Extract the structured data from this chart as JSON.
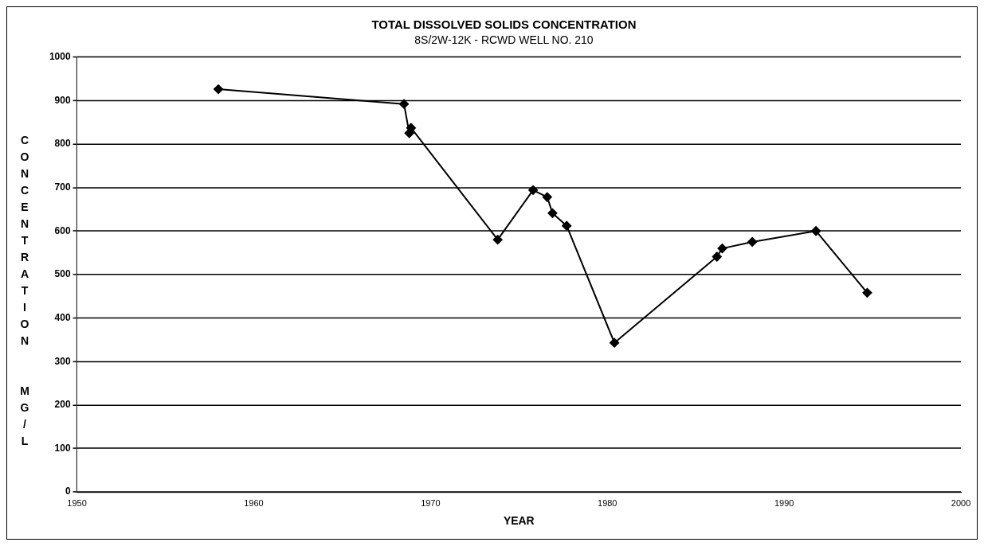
{
  "chart_data": {
    "type": "line",
    "title": "TOTAL DISSOLVED SOLIDS CONCENTRATION",
    "subtitle": "8S/2W-12K - RCWD WELL NO. 210",
    "xlabel": "YEAR",
    "ylabel": "CONCENTRATION  MG/L",
    "x": [
      1958.0,
      1968.5,
      1968.8,
      1968.9,
      1973.8,
      1975.8,
      1976.6,
      1976.9,
      1977.7,
      1980.4,
      1986.2,
      1986.5,
      1988.2,
      1991.8,
      1994.7
    ],
    "series": [
      {
        "color": "#000000",
        "values": [
          926,
          892,
          825,
          837,
          580,
          694,
          678,
          641,
          612,
          343,
          541,
          560,
          575,
          600,
          458
        ]
      }
    ],
    "xlim": [
      1950,
      2000
    ],
    "xticks": [
      1950,
      1960,
      1970,
      1980,
      1990,
      2000
    ],
    "ylim": [
      0,
      1000
    ],
    "yticks": [
      0,
      100,
      200,
      300,
      400,
      500,
      600,
      700,
      800,
      900,
      1000
    ],
    "grid": "y",
    "legend": false,
    "marker": "diamond",
    "line_style": "solid"
  }
}
